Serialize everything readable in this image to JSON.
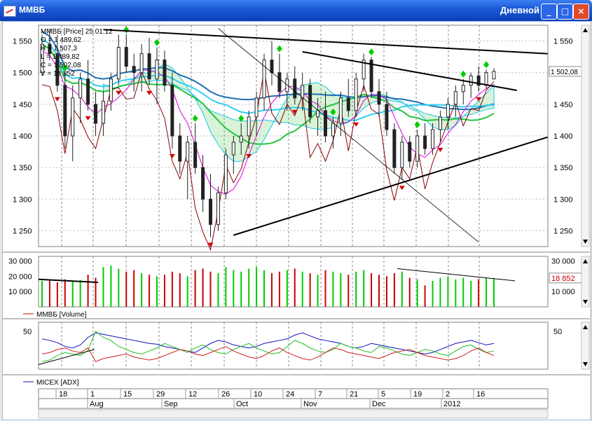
{
  "window": {
    "title": "ММВБ",
    "period": "Дневной",
    "min_glyph": "_",
    "max_glyph": "□",
    "close_glyph": "×"
  },
  "colors": {
    "up": "#00cc00",
    "down": "#cc0000",
    "price_bar": "#222222",
    "cloud_green": "#00b000",
    "cloud_cyan": "#19c6e8",
    "ma_dark_blue": "#1f6fb5",
    "ma_cyan": "#30d0f0",
    "ma_green": "#22c640",
    "ma_magenta": "#e000e0",
    "line_darkred": "#8b0000",
    "adx_blue": "#1010c0",
    "adx_green": "#20c020",
    "adx_red": "#d02020"
  },
  "icons": {
    "fractal_up": "green-diamond",
    "fractal_down": "red-arrow-down",
    "scroll_up": "triangle-up",
    "scroll_down": "triangle-down"
  },
  "chart_data": [
    {
      "type": "candlestick",
      "panel": "price",
      "legend": {
        "name": "ММВБ [Price] 25.01.12",
        "open": "О = 1 489,62",
        "high": "H = 1 507,3",
        "low": "L = 1 489,82",
        "close": "С = 1 502,08",
        "volume": "V = 18 852"
      },
      "last_value_label": "1 502,08",
      "y_ticks": [
        "1 550",
        "1 500",
        "1 450",
        "1 400",
        "1 350",
        "1 300",
        "1 250"
      ],
      "y_tick_values": [
        1550,
        1500,
        1450,
        1400,
        1350,
        1300,
        1250
      ],
      "ylim": [
        1225,
        1575
      ],
      "grid": true,
      "candles": [
        [
          1500,
          1560,
          1495,
          1545
        ],
        [
          1545,
          1570,
          1520,
          1530
        ],
        [
          1530,
          1560,
          1470,
          1480
        ],
        [
          1480,
          1500,
          1380,
          1400
        ],
        [
          1400,
          1480,
          1360,
          1460
        ],
        [
          1460,
          1500,
          1420,
          1490
        ],
        [
          1490,
          1520,
          1440,
          1450
        ],
        [
          1450,
          1470,
          1400,
          1420
        ],
        [
          1420,
          1470,
          1400,
          1455
        ],
        [
          1455,
          1500,
          1440,
          1490
        ],
        [
          1490,
          1560,
          1480,
          1540
        ],
        [
          1540,
          1560,
          1500,
          1510
        ],
        [
          1510,
          1530,
          1470,
          1500
        ],
        [
          1500,
          1545,
          1470,
          1530
        ],
        [
          1530,
          1555,
          1480,
          1490
        ],
        [
          1490,
          1540,
          1450,
          1520
        ],
        [
          1520,
          1535,
          1470,
          1480
        ],
        [
          1480,
          1500,
          1380,
          1400
        ],
        [
          1400,
          1420,
          1340,
          1360
        ],
        [
          1360,
          1400,
          1300,
          1390
        ],
        [
          1390,
          1420,
          1340,
          1350
        ],
        [
          1350,
          1370,
          1280,
          1300
        ],
        [
          1300,
          1340,
          1240,
          1260
        ],
        [
          1260,
          1320,
          1250,
          1310
        ],
        [
          1310,
          1380,
          1300,
          1370
        ],
        [
          1370,
          1400,
          1340,
          1390
        ],
        [
          1390,
          1420,
          1370,
          1400
        ],
        [
          1400,
          1440,
          1380,
          1430
        ],
        [
          1430,
          1470,
          1400,
          1460
        ],
        [
          1460,
          1530,
          1440,
          1520
        ],
        [
          1520,
          1550,
          1480,
          1500
        ],
        [
          1500,
          1530,
          1460,
          1470
        ],
        [
          1470,
          1500,
          1440,
          1490
        ],
        [
          1490,
          1510,
          1450,
          1460
        ],
        [
          1460,
          1500,
          1440,
          1480
        ],
        [
          1480,
          1490,
          1420,
          1430
        ],
        [
          1430,
          1460,
          1400,
          1440
        ],
        [
          1440,
          1470,
          1390,
          1400
        ],
        [
          1400,
          1430,
          1380,
          1420
        ],
        [
          1420,
          1470,
          1400,
          1460
        ],
        [
          1460,
          1490,
          1430,
          1440
        ],
        [
          1440,
          1500,
          1430,
          1490
        ],
        [
          1490,
          1530,
          1470,
          1520
        ],
        [
          1520,
          1525,
          1460,
          1470
        ],
        [
          1470,
          1490,
          1430,
          1450
        ],
        [
          1450,
          1470,
          1400,
          1410
        ],
        [
          1410,
          1420,
          1340,
          1350
        ],
        [
          1350,
          1400,
          1330,
          1390
        ],
        [
          1390,
          1400,
          1350,
          1360
        ],
        [
          1360,
          1410,
          1350,
          1400
        ],
        [
          1400,
          1420,
          1370,
          1380
        ],
        [
          1380,
          1420,
          1370,
          1410
        ],
        [
          1410,
          1440,
          1390,
          1430
        ],
        [
          1430,
          1460,
          1410,
          1450
        ],
        [
          1450,
          1480,
          1430,
          1470
        ],
        [
          1470,
          1490,
          1450,
          1480
        ],
        [
          1480,
          1500,
          1460,
          1495
        ],
        [
          1495,
          1510,
          1470,
          1480
        ],
        [
          1480,
          1505,
          1475,
          1500
        ],
        [
          1490,
          1507,
          1490,
          1502
        ]
      ],
      "fractals_up_at": [
        3,
        11,
        15,
        20,
        26,
        31,
        38,
        43,
        49,
        55,
        58
      ],
      "fractals_down_at": [
        2,
        6,
        10,
        14,
        17,
        22,
        27,
        33,
        41,
        47,
        52,
        57
      ],
      "x_labels": [
        "18",
        "1",
        "15",
        "29",
        "12",
        "26",
        "10",
        "24",
        "7",
        "21",
        "5",
        "19",
        "2",
        "16"
      ],
      "month_labels": [
        "Aug",
        "Sep",
        "Oct",
        "Nov",
        "Dec",
        "2012"
      ]
    },
    {
      "type": "bar",
      "panel": "volume",
      "series_label": "ММВБ [Volume]",
      "y_ticks": [
        "30 000",
        "20 000",
        "10 000"
      ],
      "y_tick_values": [
        30000,
        20000,
        10000
      ],
      "last_value_label": "18 852",
      "ylim": [
        0,
        33000
      ],
      "values": [
        17000,
        17500,
        16000,
        18000,
        16500,
        17500,
        21000,
        19000,
        26000,
        27000,
        25000,
        23000,
        24000,
        22000,
        21000,
        20000,
        21000,
        23000,
        22000,
        20000,
        24000,
        25000,
        23000,
        22000,
        26000,
        24000,
        23000,
        25000,
        26000,
        24000,
        22000,
        23000,
        24000,
        25000,
        23000,
        22000,
        21000,
        24000,
        23000,
        22000,
        21000,
        23000,
        24000,
        22000,
        21000,
        20000,
        22000,
        23000,
        19000,
        18000,
        14000,
        17000,
        19000,
        20000,
        18000,
        19000,
        17000,
        18000,
        19000,
        18852
      ]
    },
    {
      "type": "line",
      "panel": "adx",
      "series_label": "MICEX [ADX]",
      "y_ticks": [
        "50"
      ],
      "y_tick_values": [
        50
      ],
      "ylim": [
        0,
        62
      ],
      "series": [
        {
          "values": [
            40,
            38,
            35,
            30,
            28,
            32,
            42,
            48,
            46,
            44,
            42,
            40,
            38,
            36,
            34,
            33,
            30,
            28,
            26,
            24,
            22,
            28,
            34,
            38,
            36,
            32,
            30,
            28,
            30,
            34,
            36,
            38,
            40,
            45,
            48,
            44,
            40,
            38,
            36,
            34,
            30,
            28,
            30,
            34,
            32,
            30,
            28,
            26,
            24,
            22,
            20,
            22,
            26,
            30,
            34,
            36,
            38,
            35,
            32,
            34
          ]
        },
        {
          "values": [
            10,
            12,
            18,
            22,
            20,
            18,
            25,
            50,
            42,
            38,
            30,
            26,
            22,
            20,
            24,
            28,
            34,
            30,
            26,
            22,
            28,
            32,
            26,
            22,
            20,
            26,
            30,
            34,
            28,
            24,
            20,
            22,
            30,
            38,
            34,
            28,
            24,
            22,
            26,
            34,
            30,
            28,
            24,
            22,
            30,
            28,
            24,
            20,
            18,
            22,
            26,
            24,
            20,
            18,
            24,
            30,
            32,
            26,
            22,
            24
          ]
        },
        {
          "values": [
            20,
            22,
            26,
            28,
            24,
            22,
            28,
            10,
            14,
            16,
            18,
            20,
            16,
            14,
            12,
            14,
            18,
            22,
            26,
            24,
            20,
            18,
            22,
            26,
            30,
            24,
            20,
            16,
            14,
            18,
            24,
            28,
            22,
            18,
            14,
            12,
            16,
            22,
            28,
            26,
            22,
            20,
            18,
            16,
            14,
            18,
            22,
            24,
            26,
            22,
            18,
            16,
            14,
            12,
            14,
            18,
            24,
            28,
            22,
            18
          ]
        }
      ]
    }
  ]
}
